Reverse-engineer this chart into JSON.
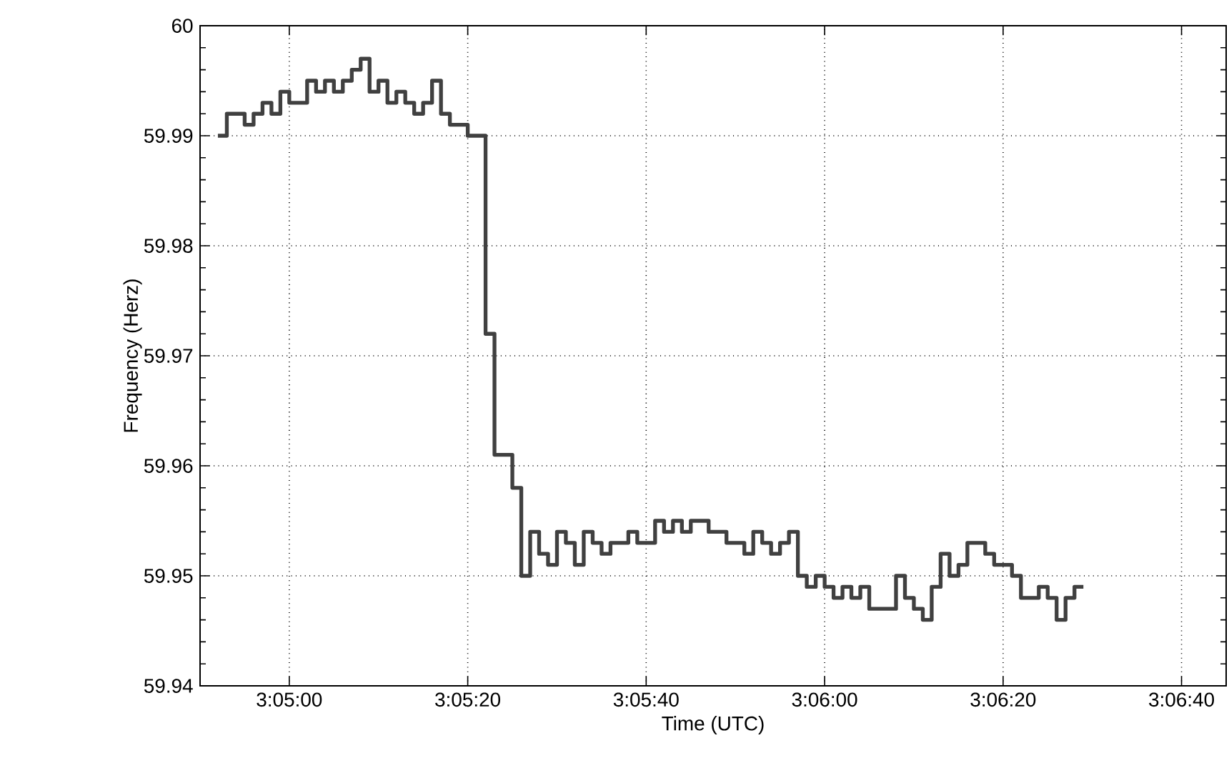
{
  "chart_data": {
    "type": "step",
    "xlabel": "Time (UTC)",
    "ylabel": "Frequency (Herz)",
    "xlim": [
      3.080556,
      3.1125
    ],
    "ylim": [
      59.94,
      60
    ],
    "xticks": [
      {
        "value": 3.083333,
        "label": "3:05:00"
      },
      {
        "value": 3.088889,
        "label": "3:05:20"
      },
      {
        "value": 3.094444,
        "label": "3:05:40"
      },
      {
        "value": 3.1,
        "label": "3:06:00"
      },
      {
        "value": 3.105556,
        "label": "3:06:20"
      },
      {
        "value": 3.111111,
        "label": "3:06:40"
      }
    ],
    "yticks": [
      59.94,
      59.95,
      59.96,
      59.97,
      59.98,
      59.99,
      60
    ],
    "grid": true,
    "marker": "none",
    "line_style": "solid",
    "series": [
      {
        "color": "#404040",
        "x": [
          3.081111,
          3.081389,
          3.081667,
          3.081944,
          3.082222,
          3.0825,
          3.082778,
          3.083056,
          3.083333,
          3.083611,
          3.083889,
          3.084167,
          3.084444,
          3.084722,
          3.085,
          3.085278,
          3.085556,
          3.085833,
          3.086111,
          3.086389,
          3.086667,
          3.086944,
          3.087222,
          3.0875,
          3.087778,
          3.088056,
          3.088333,
          3.088611,
          3.088889,
          3.089167,
          3.089444,
          3.089722,
          3.09,
          3.090278,
          3.090556,
          3.090833,
          3.091111,
          3.091389,
          3.091667,
          3.091944,
          3.092222,
          3.0925,
          3.092778,
          3.093056,
          3.093333,
          3.093611,
          3.093889,
          3.094167,
          3.094444,
          3.094722,
          3.095,
          3.095278,
          3.095556,
          3.095833,
          3.096111,
          3.096389,
          3.096667,
          3.096944,
          3.097222,
          3.0975,
          3.097778,
          3.098056,
          3.098333,
          3.098611,
          3.098889,
          3.099167,
          3.099444,
          3.099722,
          3.1,
          3.100278,
          3.100556,
          3.100833,
          3.101111,
          3.101389,
          3.101667,
          3.101944,
          3.102222,
          3.1025,
          3.102778,
          3.103056,
          3.103333,
          3.103611,
          3.103889,
          3.104167,
          3.104444,
          3.104722,
          3.105,
          3.105278,
          3.105556,
          3.105833,
          3.106111,
          3.106389,
          3.106667,
          3.106944,
          3.107222,
          3.1075,
          3.107778,
          3.108056
        ],
        "values": [
          59.99,
          59.992,
          59.992,
          59.991,
          59.992,
          59.993,
          59.992,
          59.994,
          59.993,
          59.993,
          59.995,
          59.994,
          59.995,
          59.994,
          59.995,
          59.996,
          59.997,
          59.994,
          59.995,
          59.993,
          59.994,
          59.993,
          59.992,
          59.993,
          59.995,
          59.992,
          59.991,
          59.991,
          59.99,
          59.99,
          59.972,
          59.961,
          59.961,
          59.958,
          59.95,
          59.954,
          59.952,
          59.951,
          59.954,
          59.953,
          59.951,
          59.954,
          59.953,
          59.952,
          59.953,
          59.953,
          59.954,
          59.953,
          59.953,
          59.955,
          59.954,
          59.955,
          59.954,
          59.955,
          59.955,
          59.954,
          59.954,
          59.953,
          59.953,
          59.952,
          59.954,
          59.953,
          59.952,
          59.953,
          59.954,
          59.95,
          59.949,
          59.95,
          59.949,
          59.948,
          59.949,
          59.948,
          59.949,
          59.947,
          59.947,
          59.947,
          59.95,
          59.948,
          59.947,
          59.946,
          59.949,
          59.952,
          59.95,
          59.951,
          59.953,
          59.953,
          59.952,
          59.951,
          59.951,
          59.95,
          59.948,
          59.948,
          59.949,
          59.948,
          59.946,
          59.948,
          59.949,
          59.949
        ]
      }
    ]
  }
}
